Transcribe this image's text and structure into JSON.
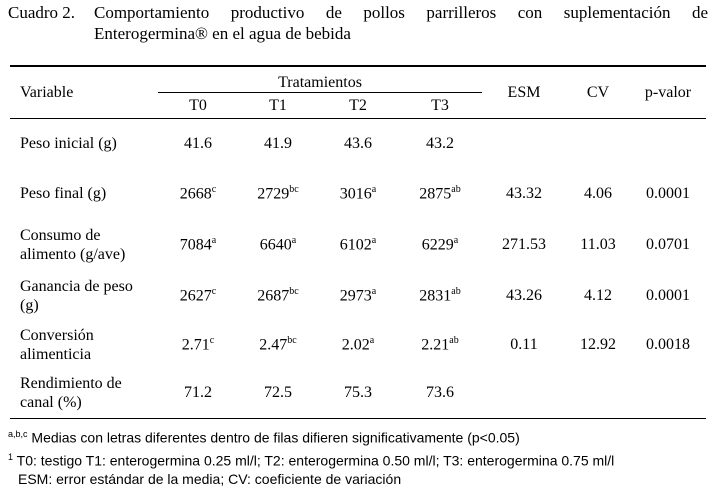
{
  "caption": {
    "label": "Cuadro 2.",
    "line1": "Comportamiento productivo de pollos parrilleros con suplementación de",
    "line2": "Enterogermina® en el agua de bebida"
  },
  "table": {
    "header": {
      "variable": "Variable",
      "group": "Tratamientos",
      "treatments": [
        "T0",
        "T1",
        "T2",
        "T3"
      ],
      "esm": "ESM",
      "cv": "CV",
      "pvalue": "p-valor"
    },
    "rows": [
      {
        "label1": "Peso inicial (g)",
        "label2": "",
        "t": [
          {
            "v": "41.6",
            "s": ""
          },
          {
            "v": "41.9",
            "s": ""
          },
          {
            "v": "43.6",
            "s": ""
          },
          {
            "v": "43.2",
            "s": ""
          }
        ],
        "esm": "",
        "cv": "",
        "p": ""
      },
      {
        "label1": "Peso final (g)",
        "label2": "",
        "t": [
          {
            "v": "2668",
            "s": "c"
          },
          {
            "v": "2729",
            "s": "bc"
          },
          {
            "v": "3016",
            "s": "a"
          },
          {
            "v": "2875",
            "s": "ab"
          }
        ],
        "esm": "43.32",
        "cv": "4.06",
        "p": "0.0001"
      },
      {
        "label1": "Consumo de",
        "label2": "alimento (g/ave)",
        "t": [
          {
            "v": "7084",
            "s": "a"
          },
          {
            "v": "6640",
            "s": "a"
          },
          {
            "v": "6102",
            "s": "a"
          },
          {
            "v": "6229",
            "s": "a"
          }
        ],
        "esm": "271.53",
        "cv": "11.03",
        "p": "0.0701"
      },
      {
        "label1": "Ganancia de peso",
        "label2": "(g)",
        "t": [
          {
            "v": "2627",
            "s": "c"
          },
          {
            "v": "2687",
            "s": "bc"
          },
          {
            "v": "2973",
            "s": "a"
          },
          {
            "v": "2831",
            "s": "ab"
          }
        ],
        "esm": "43.26",
        "cv": "4.12",
        "p": "0.0001"
      },
      {
        "label1": "Conversión",
        "label2": "alimenticia",
        "t": [
          {
            "v": "2.71",
            "s": "c"
          },
          {
            "v": "2.47",
            "s": "bc"
          },
          {
            "v": "2.02",
            "s": "a"
          },
          {
            "v": "2.21",
            "s": "ab"
          }
        ],
        "esm": "0.11",
        "cv": "12.92",
        "p": "0.0018"
      },
      {
        "label1": "Rendimiento de",
        "label2": "canal (%)",
        "t": [
          {
            "v": "71.2",
            "s": ""
          },
          {
            "v": "72.5",
            "s": ""
          },
          {
            "v": "75.3",
            "s": ""
          },
          {
            "v": "73.6",
            "s": ""
          }
        ],
        "esm": "",
        "cv": "",
        "p": ""
      }
    ]
  },
  "notes": {
    "n1_sup": "a,b,c",
    "n1_text": "Medias con letras diferentes dentro de filas difieren significativamente (p<0.05)",
    "n2_sup": "1",
    "n2_text": "T0: testigo T1: enterogermina 0.25 ml/l; T2: enterogermina 0.50 ml/l; T3: enterogermina 0.75 ml/l",
    "n3_text": "ESM: error estándar de la media; CV: coeficiente de variación"
  }
}
